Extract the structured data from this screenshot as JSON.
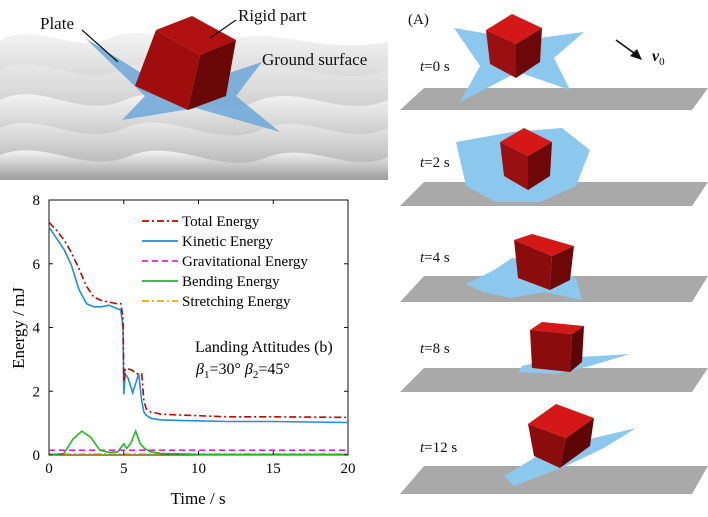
{
  "figure": {
    "callouts": {
      "plate": "Plate",
      "rigid_part": "Rigid part",
      "ground_surface": "Ground surface"
    },
    "panel_a": {
      "label": "(A)",
      "velocity_symbol": "v",
      "velocity_subscript": "0",
      "frames": [
        {
          "var": "t",
          "label": "=0 s"
        },
        {
          "var": "t",
          "label": "=2 s"
        },
        {
          "var": "t",
          "label": "=4 s"
        },
        {
          "var": "t",
          "label": "=8 s"
        },
        {
          "var": "t",
          "label": "=12 s"
        }
      ]
    },
    "colors": {
      "cube_face": "#cc1414",
      "cube_side": "#8e0d0d",
      "plate": "#8cc8ee",
      "ground": "#a9a9a9"
    }
  },
  "chart_data": {
    "type": "line",
    "title": "",
    "xlabel": "Time / s",
    "ylabel": "Energy / mJ",
    "xlim": [
      0,
      20
    ],
    "ylim": [
      0,
      8
    ],
    "xticks": [
      0,
      5,
      10,
      15,
      20
    ],
    "yticks": [
      0,
      2,
      4,
      6,
      8
    ],
    "grid": false,
    "legend_position": "top-right",
    "annotation": {
      "line1": "Landing Attitudes (b)",
      "beta1_symbol": "β",
      "beta1_sub": "1",
      "beta1_value": "=30°",
      "beta2_symbol": "β",
      "beta2_sub": "2",
      "beta2_value": "=45°"
    },
    "series": [
      {
        "name": "Total Energy",
        "color": "#c00000",
        "dash": "dashdot",
        "x": [
          0,
          0.5,
          1,
          1.5,
          2,
          2.5,
          3,
          3.5,
          4,
          4.5,
          4.8,
          4.95,
          5.0,
          5.1,
          5.3,
          5.6,
          5.8,
          6.0,
          6.2,
          6.35,
          6.5,
          6.8,
          7.5,
          9,
          12,
          15,
          20
        ],
        "y": [
          7.3,
          7.05,
          6.75,
          6.35,
          5.85,
          5.3,
          4.95,
          4.85,
          4.8,
          4.75,
          4.75,
          4.3,
          2.3,
          2.7,
          2.7,
          2.65,
          2.55,
          2.55,
          2.55,
          1.7,
          1.45,
          1.35,
          1.28,
          1.25,
          1.2,
          1.2,
          1.18
        ]
      },
      {
        "name": "Kinetic Energy",
        "color": "#1f8fdc",
        "dash": "solid",
        "x": [
          0,
          0.5,
          1,
          1.5,
          2,
          2.5,
          3,
          3.5,
          4,
          4.5,
          4.8,
          4.95,
          5.0,
          5.1,
          5.3,
          5.6,
          5.8,
          6.0,
          6.2,
          6.35,
          6.5,
          6.8,
          7.5,
          9,
          12,
          15,
          20
        ],
        "y": [
          7.15,
          6.8,
          6.45,
          5.95,
          5.2,
          4.75,
          4.65,
          4.65,
          4.7,
          4.6,
          4.55,
          4.0,
          1.9,
          2.55,
          2.4,
          1.95,
          2.25,
          2.55,
          1.7,
          1.35,
          1.25,
          1.15,
          1.1,
          1.08,
          1.05,
          1.05,
          1.02
        ]
      },
      {
        "name": "Gravitational Energy",
        "color": "#e020e0",
        "dash": "dashed",
        "x": [
          0,
          5,
          10,
          15,
          20
        ],
        "y": [
          0.15,
          0.15,
          0.15,
          0.15,
          0.15
        ]
      },
      {
        "name": "Bending Energy",
        "color": "#22b822",
        "dash": "solid",
        "x": [
          0,
          1.0,
          1.6,
          2.2,
          2.8,
          3.4,
          4.0,
          4.6,
          5.0,
          5.2,
          5.5,
          5.8,
          6.1,
          6.4,
          6.8,
          7.5,
          10,
          15,
          20
        ],
        "y": [
          0.0,
          0.05,
          0.5,
          0.75,
          0.55,
          0.15,
          0.08,
          0.1,
          0.35,
          0.2,
          0.4,
          0.75,
          0.35,
          0.2,
          0.1,
          0.05,
          0.02,
          0.02,
          0.02
        ]
      },
      {
        "name": "Stretching Energy",
        "color": "#e0b000",
        "dash": "dashdot",
        "x": [
          0,
          5,
          10,
          15,
          20
        ],
        "y": [
          0.03,
          0.03,
          0.03,
          0.03,
          0.03
        ]
      }
    ]
  }
}
